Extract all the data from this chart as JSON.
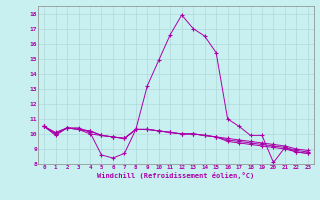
{
  "title": "",
  "xlabel": "Windchill (Refroidissement éolien,°C)",
  "background_color": "#c8f0f0",
  "line_color": "#aa00aa",
  "grid_color": "#b0d8d8",
  "xmin": -0.5,
  "xmax": 23.5,
  "ymin": 8,
  "ymax": 18.5,
  "xtick_labels": [
    "0",
    "1",
    "2",
    "3",
    "4",
    "5",
    "6",
    "7",
    "8",
    "9",
    "10",
    "11",
    "12",
    "13",
    "14",
    "15",
    "16",
    "17",
    "18",
    "19",
    "20",
    "21",
    "22",
    "23"
  ],
  "ytick_labels": [
    "8",
    "9",
    "10",
    "11",
    "12",
    "13",
    "14",
    "15",
    "16",
    "17",
    "18"
  ],
  "lines": [
    [
      10.5,
      9.9,
      10.4,
      10.4,
      10.1,
      8.6,
      8.4,
      8.7,
      10.3,
      13.2,
      14.9,
      16.6,
      17.9,
      17.0,
      16.5,
      15.4,
      11.0,
      10.5,
      9.9,
      9.9,
      8.1,
      9.1,
      8.8,
      8.7
    ],
    [
      10.5,
      10.0,
      10.4,
      10.3,
      10.2,
      9.9,
      9.8,
      9.7,
      10.3,
      10.3,
      10.2,
      10.1,
      10.0,
      10.0,
      9.9,
      9.8,
      9.6,
      9.5,
      9.4,
      9.3,
      9.2,
      9.1,
      8.9,
      8.8
    ],
    [
      10.5,
      10.1,
      10.4,
      10.3,
      10.2,
      9.9,
      9.8,
      9.7,
      10.3,
      10.3,
      10.2,
      10.1,
      10.0,
      10.0,
      9.9,
      9.8,
      9.7,
      9.6,
      9.5,
      9.4,
      9.3,
      9.2,
      9.0,
      8.9
    ],
    [
      10.5,
      10.0,
      10.4,
      10.3,
      10.0,
      9.9,
      9.8,
      9.7,
      10.3,
      10.3,
      10.2,
      10.1,
      10.0,
      10.0,
      9.9,
      9.8,
      9.5,
      9.4,
      9.3,
      9.2,
      9.1,
      9.0,
      8.8,
      8.7
    ]
  ]
}
